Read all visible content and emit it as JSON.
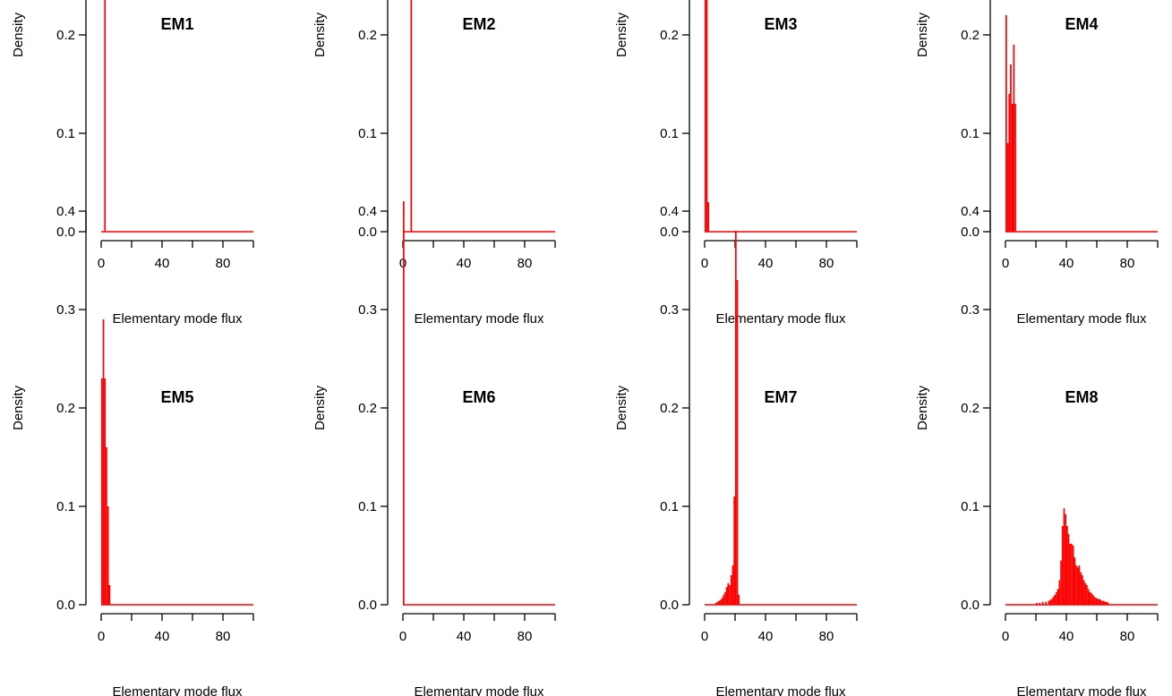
{
  "chart_data": [
    {
      "type": "bar",
      "title": "EM1",
      "xlabel": "Elementary mode flux",
      "ylabel": "Density",
      "xlim": [
        0,
        100
      ],
      "ylim": [
        0,
        0.4
      ],
      "x_ticks": [
        "0",
        "20",
        "40",
        "60",
        "80",
        "100"
      ],
      "x_tick_labels_shown": [
        "0",
        "40",
        "80"
      ],
      "y_ticks": [
        "0.0",
        "0.1",
        "0.2",
        "0.3",
        "0.4"
      ],
      "bin_width": 1,
      "bins": [
        {
          "x": 2,
          "density": 0.41
        }
      ],
      "baseline": [
        0,
        100
      ],
      "color": "#ff0000"
    },
    {
      "type": "bar",
      "title": "EM2",
      "xlabel": "Elementary mode flux",
      "ylabel": "Density",
      "xlim": [
        0,
        100
      ],
      "ylim": [
        0,
        0.4
      ],
      "x_ticks": [
        "0",
        "20",
        "40",
        "60",
        "80",
        "100"
      ],
      "x_tick_labels_shown": [
        "0",
        "40",
        "80"
      ],
      "y_ticks": [
        "0.0",
        "0.1",
        "0.2",
        "0.3",
        "0.4"
      ],
      "bin_width": 1,
      "bins": [
        {
          "x": 5,
          "density": 0.41
        }
      ],
      "baseline": [
        0,
        100
      ],
      "color": "#ff0000"
    },
    {
      "type": "bar",
      "title": "EM3",
      "xlabel": "Elementary mode flux",
      "ylabel": "Density",
      "xlim": [
        0,
        100
      ],
      "ylim": [
        0,
        0.4
      ],
      "x_ticks": [
        "0",
        "20",
        "40",
        "60",
        "80",
        "100"
      ],
      "x_tick_labels_shown": [
        "0",
        "40",
        "80"
      ],
      "y_ticks": [
        "0.0",
        "0.1",
        "0.2",
        "0.3",
        "0.4"
      ],
      "bin_width": 1,
      "bins": [
        {
          "x": 0,
          "density": 0.41
        },
        {
          "x": 1,
          "density": 0.41
        },
        {
          "x": 2,
          "density": 0.03
        }
      ],
      "baseline": [
        0,
        100
      ],
      "color": "#ff0000"
    },
    {
      "type": "bar",
      "title": "EM4",
      "xlabel": "Elementary mode flux",
      "ylabel": "Density",
      "xlim": [
        0,
        100
      ],
      "ylim": [
        0,
        0.4
      ],
      "x_ticks": [
        "0",
        "20",
        "40",
        "60",
        "80",
        "100"
      ],
      "x_tick_labels_shown": [
        "0",
        "40",
        "80"
      ],
      "y_ticks": [
        "0.0",
        "0.1",
        "0.2",
        "0.3",
        "0.4"
      ],
      "bin_width": 1,
      "bins": [
        {
          "x": 0,
          "density": 0.22
        },
        {
          "x": 1,
          "density": 0.09
        },
        {
          "x": 2,
          "density": 0.14
        },
        {
          "x": 3,
          "density": 0.17
        },
        {
          "x": 4,
          "density": 0.13
        },
        {
          "x": 5,
          "density": 0.19
        },
        {
          "x": 6,
          "density": 0.13
        }
      ],
      "baseline": [
        0,
        100
      ],
      "color": "#ff0000"
    },
    {
      "type": "bar",
      "title": "EM5",
      "xlabel": "Elementary mode flux",
      "ylabel": "Density",
      "xlim": [
        0,
        100
      ],
      "ylim": [
        0,
        0.4
      ],
      "x_ticks": [
        "0",
        "20",
        "40",
        "60",
        "80",
        "100"
      ],
      "x_tick_labels_shown": [
        "0",
        "40",
        "80"
      ],
      "y_ticks": [
        "0.0",
        "0.1",
        "0.2",
        "0.3",
        "0.4"
      ],
      "bin_width": 1,
      "bins": [
        {
          "x": 0,
          "density": 0.23
        },
        {
          "x": 1,
          "density": 0.29
        },
        {
          "x": 2,
          "density": 0.23
        },
        {
          "x": 3,
          "density": 0.16
        },
        {
          "x": 4,
          "density": 0.1
        },
        {
          "x": 5,
          "density": 0.02
        }
      ],
      "baseline": [
        0,
        100
      ],
      "color": "#ff0000"
    },
    {
      "type": "bar",
      "title": "EM6",
      "xlabel": "Elementary mode flux",
      "ylabel": "Density",
      "xlim": [
        0,
        100
      ],
      "ylim": [
        0,
        0.4
      ],
      "x_ticks": [
        "0",
        "20",
        "40",
        "60",
        "80",
        "100"
      ],
      "x_tick_labels_shown": [
        "0",
        "40",
        "80"
      ],
      "y_ticks": [
        "0.0",
        "0.1",
        "0.2",
        "0.3",
        "0.4"
      ],
      "bin_width": 1,
      "bins": [
        {
          "x": 0,
          "density": 0.41
        }
      ],
      "baseline": [
        0,
        100
      ],
      "color": "#ff0000"
    },
    {
      "type": "bar",
      "title": "EM7",
      "xlabel": "Elementary mode flux",
      "ylabel": "Density",
      "xlim": [
        0,
        100
      ],
      "ylim": [
        0,
        0.4
      ],
      "x_ticks": [
        "0",
        "20",
        "40",
        "60",
        "80",
        "100"
      ],
      "x_tick_labels_shown": [
        "0",
        "40",
        "80"
      ],
      "y_ticks": [
        "0.0",
        "0.1",
        "0.2",
        "0.3",
        "0.4"
      ],
      "bin_width": 1,
      "bins": [
        {
          "x": 7,
          "density": 0.002
        },
        {
          "x": 8,
          "density": 0.003
        },
        {
          "x": 9,
          "density": 0.004
        },
        {
          "x": 10,
          "density": 0.005
        },
        {
          "x": 11,
          "density": 0.007
        },
        {
          "x": 12,
          "density": 0.01
        },
        {
          "x": 13,
          "density": 0.013
        },
        {
          "x": 14,
          "density": 0.018
        },
        {
          "x": 15,
          "density": 0.022
        },
        {
          "x": 16,
          "density": 0.02
        },
        {
          "x": 17,
          "density": 0.03
        },
        {
          "x": 18,
          "density": 0.04
        },
        {
          "x": 19,
          "density": 0.11
        },
        {
          "x": 20,
          "density": 0.38
        },
        {
          "x": 21,
          "density": 0.33
        },
        {
          "x": 22,
          "density": 0.01
        }
      ],
      "baseline": [
        0,
        100
      ],
      "color": "#ff0000"
    },
    {
      "type": "bar",
      "title": "EM8",
      "xlabel": "Elementary mode flux",
      "ylabel": "Density",
      "xlim": [
        0,
        100
      ],
      "ylim": [
        0,
        0.4
      ],
      "x_ticks": [
        "0",
        "20",
        "40",
        "60",
        "80",
        "100"
      ],
      "x_tick_labels_shown": [
        "0",
        "40",
        "80"
      ],
      "y_ticks": [
        "0.0",
        "0.1",
        "0.2",
        "0.3",
        "0.4"
      ],
      "bin_width": 1,
      "bins": [
        {
          "x": 20,
          "density": 0.002
        },
        {
          "x": 22,
          "density": 0.002
        },
        {
          "x": 24,
          "density": 0.003
        },
        {
          "x": 26,
          "density": 0.003
        },
        {
          "x": 28,
          "density": 0.004
        },
        {
          "x": 29,
          "density": 0.005
        },
        {
          "x": 30,
          "density": 0.006
        },
        {
          "x": 31,
          "density": 0.008
        },
        {
          "x": 32,
          "density": 0.01
        },
        {
          "x": 33,
          "density": 0.013
        },
        {
          "x": 34,
          "density": 0.016
        },
        {
          "x": 35,
          "density": 0.025
        },
        {
          "x": 36,
          "density": 0.045
        },
        {
          "x": 37,
          "density": 0.08
        },
        {
          "x": 38,
          "density": 0.098
        },
        {
          "x": 39,
          "density": 0.092
        },
        {
          "x": 40,
          "density": 0.08
        },
        {
          "x": 41,
          "density": 0.072
        },
        {
          "x": 42,
          "density": 0.062
        },
        {
          "x": 43,
          "density": 0.062
        },
        {
          "x": 44,
          "density": 0.06
        },
        {
          "x": 45,
          "density": 0.048
        },
        {
          "x": 46,
          "density": 0.04
        },
        {
          "x": 47,
          "density": 0.038
        },
        {
          "x": 48,
          "density": 0.04
        },
        {
          "x": 49,
          "density": 0.033
        },
        {
          "x": 50,
          "density": 0.03
        },
        {
          "x": 51,
          "density": 0.025
        },
        {
          "x": 52,
          "density": 0.022
        },
        {
          "x": 53,
          "density": 0.02
        },
        {
          "x": 54,
          "density": 0.016
        },
        {
          "x": 55,
          "density": 0.013
        },
        {
          "x": 56,
          "density": 0.012
        },
        {
          "x": 57,
          "density": 0.01
        },
        {
          "x": 58,
          "density": 0.008
        },
        {
          "x": 59,
          "density": 0.007
        },
        {
          "x": 60,
          "density": 0.006
        },
        {
          "x": 61,
          "density": 0.006
        },
        {
          "x": 62,
          "density": 0.005
        },
        {
          "x": 63,
          "density": 0.004
        },
        {
          "x": 64,
          "density": 0.004
        },
        {
          "x": 65,
          "density": 0.003
        },
        {
          "x": 66,
          "density": 0.003
        },
        {
          "x": 67,
          "density": 0.002
        }
      ],
      "baseline": [
        0,
        100
      ],
      "color": "#ff0000"
    }
  ]
}
